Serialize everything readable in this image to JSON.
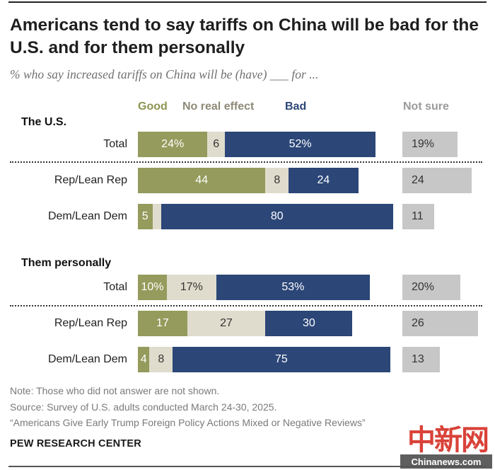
{
  "title": "Americans tend to say tariffs on China will be bad for the U.S. and for them personally",
  "subtitle": "% who say increased tariffs on China will be (have) ___ for ...",
  "legend": {
    "good": "Good",
    "none": "No real effect",
    "bad": "Bad",
    "ns": "Not sure"
  },
  "colors": {
    "good": "#949b5c",
    "none": "#e0dccd",
    "bad": "#2b4677",
    "not_sure": "#c7c7c7"
  },
  "chart_data": {
    "type": "bar",
    "orientation": "horizontal",
    "stacked": true,
    "series_names": [
      "Good",
      "No real effect",
      "Bad",
      "Not sure"
    ],
    "sections": [
      {
        "name": "The U.S.",
        "rows": [
          {
            "label": "Total",
            "good": 24,
            "none": 6,
            "bad": 52,
            "not_sure": 19,
            "labels": {
              "good": "24%",
              "none": "6",
              "bad": "52%",
              "not_sure": "19%"
            }
          },
          {
            "label": "Rep/Lean Rep",
            "good": 44,
            "none": 8,
            "bad": 24,
            "not_sure": 24,
            "labels": {
              "good": "44",
              "none": "8",
              "bad": "24",
              "not_sure": "24"
            }
          },
          {
            "label": "Dem/Lean Dem",
            "good": 5,
            "none": 3,
            "bad": 80,
            "not_sure": 11,
            "labels": {
              "good": "5",
              "none": "",
              "bad": "80",
              "not_sure": "11"
            }
          }
        ]
      },
      {
        "name": "Them personally",
        "rows": [
          {
            "label": "Total",
            "good": 10,
            "none": 17,
            "bad": 53,
            "not_sure": 20,
            "labels": {
              "good": "10%",
              "none": "17%",
              "bad": "53%",
              "not_sure": "20%"
            }
          },
          {
            "label": "Rep/Lean Rep",
            "good": 17,
            "none": 27,
            "bad": 30,
            "not_sure": 26,
            "labels": {
              "good": "17",
              "none": "27",
              "bad": "30",
              "not_sure": "26"
            }
          },
          {
            "label": "Dem/Lean Dem",
            "good": 4,
            "none": 8,
            "bad": 75,
            "not_sure": 13,
            "labels": {
              "good": "4",
              "none": "8",
              "bad": "75",
              "not_sure": "13"
            }
          }
        ]
      }
    ]
  },
  "notes": {
    "note": "Note: Those who did not answer are not shown.",
    "source": "Source: Survey of U.S. adults conducted March 24-30, 2025.",
    "report": "“Americans Give Early Trump Foreign Policy Actions Mixed or Negative Reviews”",
    "org": "PEW RESEARCH CENTER"
  },
  "watermark": {
    "chars": "中新网",
    "url": "Chinanews.com"
  }
}
